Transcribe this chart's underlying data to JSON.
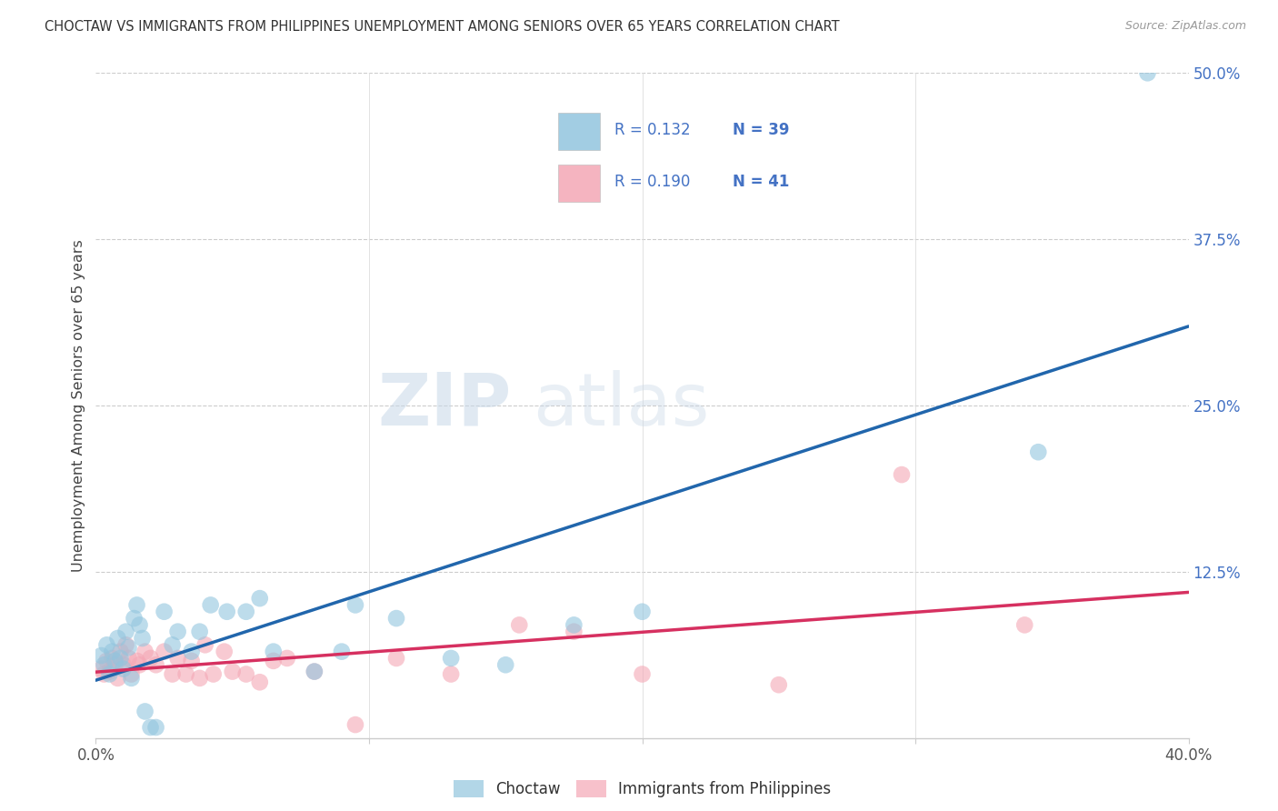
{
  "title": "CHOCTAW VS IMMIGRANTS FROM PHILIPPINES UNEMPLOYMENT AMONG SENIORS OVER 65 YEARS CORRELATION CHART",
  "source": "Source: ZipAtlas.com",
  "ylabel": "Unemployment Among Seniors over 65 years",
  "xlim": [
    0.0,
    0.4
  ],
  "ylim": [
    0.0,
    0.5
  ],
  "xticks": [
    0.0,
    0.1,
    0.2,
    0.3,
    0.4
  ],
  "xticklabels": [
    "0.0%",
    "",
    "",
    "",
    "40.0%"
  ],
  "yticks_right": [
    0.125,
    0.25,
    0.375,
    0.5
  ],
  "yticklabels_right": [
    "12.5%",
    "25.0%",
    "37.5%",
    "50.0%"
  ],
  "legend_label1": "Choctaw",
  "legend_label2": "Immigrants from Philippines",
  "R1": "0.132",
  "N1": "39",
  "R2": "0.190",
  "N2": "41",
  "color_blue": "#92c5de",
  "color_pink": "#f4a7b5",
  "color_line_blue": "#2166ac",
  "color_line_pink": "#d63060",
  "background_color": "#ffffff",
  "choctaw_x": [
    0.002,
    0.003,
    0.004,
    0.005,
    0.006,
    0.007,
    0.008,
    0.009,
    0.01,
    0.011,
    0.012,
    0.013,
    0.014,
    0.015,
    0.016,
    0.017,
    0.018,
    0.02,
    0.022,
    0.025,
    0.028,
    0.03,
    0.035,
    0.038,
    0.042,
    0.048,
    0.055,
    0.06,
    0.065,
    0.08,
    0.09,
    0.095,
    0.11,
    0.13,
    0.15,
    0.175,
    0.2,
    0.345,
    0.385
  ],
  "choctaw_y": [
    0.062,
    0.055,
    0.07,
    0.048,
    0.065,
    0.058,
    0.075,
    0.06,
    0.052,
    0.08,
    0.068,
    0.045,
    0.09,
    0.1,
    0.085,
    0.075,
    0.02,
    0.008,
    0.008,
    0.095,
    0.07,
    0.08,
    0.065,
    0.08,
    0.1,
    0.095,
    0.095,
    0.105,
    0.065,
    0.05,
    0.065,
    0.1,
    0.09,
    0.06,
    0.055,
    0.085,
    0.095,
    0.215,
    0.5
  ],
  "philippines_x": [
    0.002,
    0.003,
    0.004,
    0.005,
    0.006,
    0.007,
    0.008,
    0.009,
    0.01,
    0.011,
    0.012,
    0.013,
    0.015,
    0.016,
    0.018,
    0.02,
    0.022,
    0.025,
    0.028,
    0.03,
    0.033,
    0.035,
    0.038,
    0.04,
    0.043,
    0.047,
    0.05,
    0.055,
    0.06,
    0.065,
    0.07,
    0.08,
    0.095,
    0.11,
    0.13,
    0.155,
    0.175,
    0.2,
    0.25,
    0.295,
    0.34
  ],
  "philippines_y": [
    0.052,
    0.048,
    0.058,
    0.05,
    0.06,
    0.055,
    0.045,
    0.065,
    0.055,
    0.07,
    0.06,
    0.048,
    0.058,
    0.055,
    0.065,
    0.06,
    0.055,
    0.065,
    0.048,
    0.06,
    0.048,
    0.058,
    0.045,
    0.07,
    0.048,
    0.065,
    0.05,
    0.048,
    0.042,
    0.058,
    0.06,
    0.05,
    0.01,
    0.06,
    0.048,
    0.085,
    0.08,
    0.048,
    0.04,
    0.198,
    0.085
  ]
}
